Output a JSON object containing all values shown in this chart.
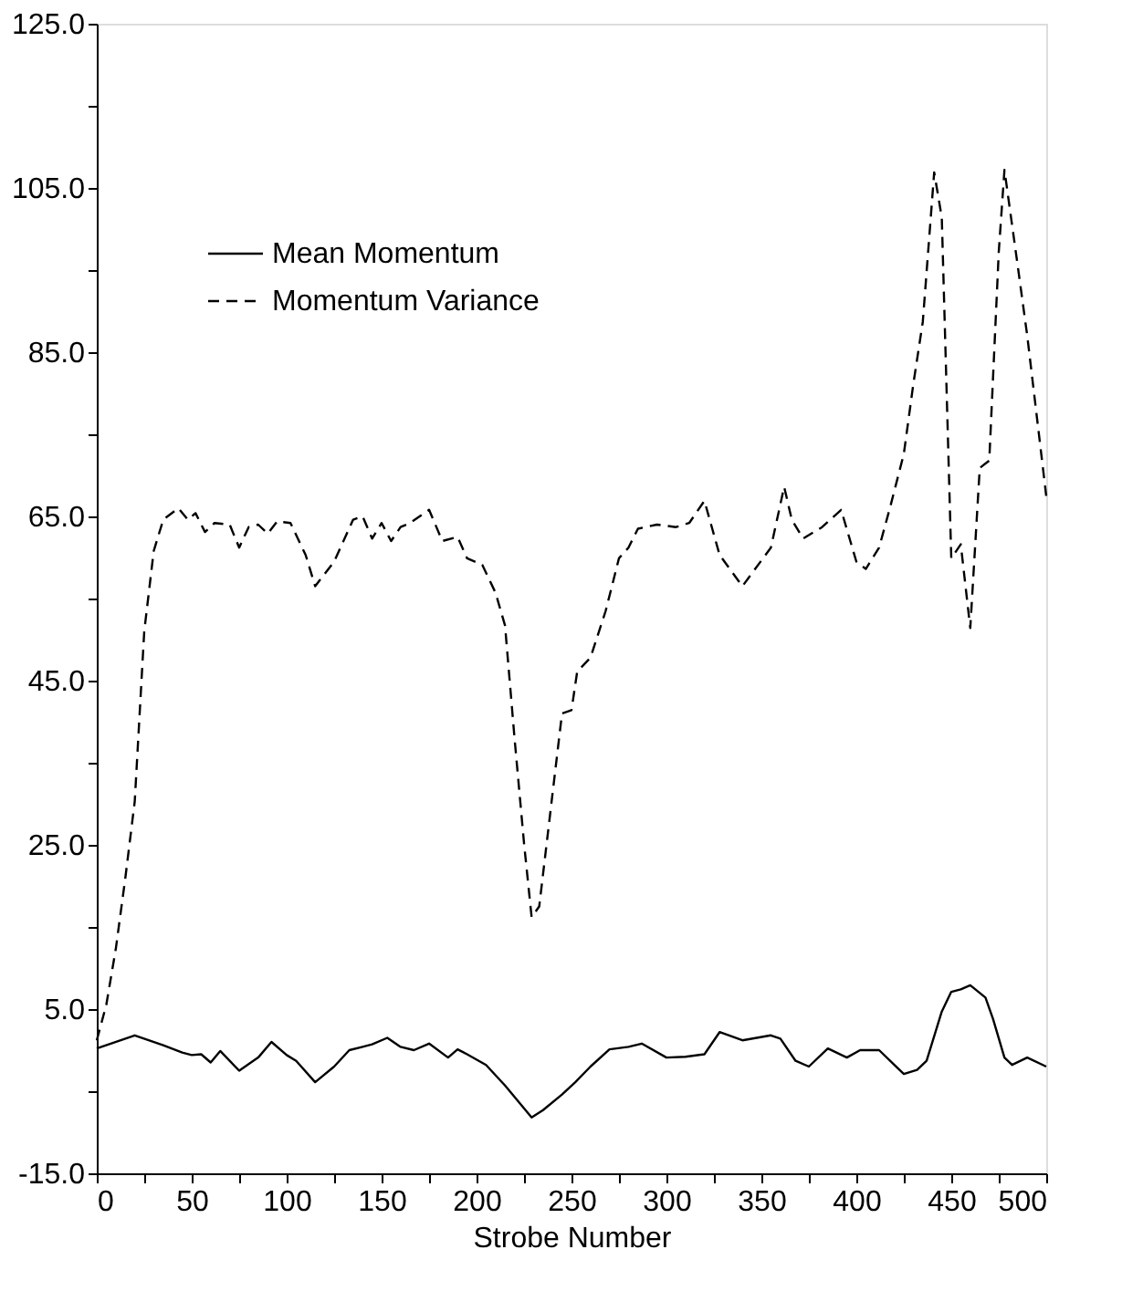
{
  "chart_data": {
    "type": "line",
    "xlabel": "Strobe Number",
    "xlim": [
      0,
      500
    ],
    "xticks": [
      0,
      {
        "value": 25,
        "label": null
      },
      50,
      {
        "value": 75,
        "label": null
      },
      100,
      {
        "value": 125,
        "label": null
      },
      150,
      {
        "value": 175,
        "label": null
      },
      200,
      {
        "value": 225,
        "label": null
      },
      250,
      {
        "value": 275,
        "label": null
      },
      300,
      {
        "value": 325,
        "label": null
      },
      350,
      {
        "value": 375,
        "label": null
      },
      400,
      {
        "value": 425,
        "label": null
      },
      450,
      {
        "value": 475,
        "label": null
      },
      500
    ],
    "ylim": [
      -15,
      125
    ],
    "yticks": [
      {
        "value": -15,
        "label": "-15.0"
      },
      {
        "value": -5,
        "label": null
      },
      {
        "value": 5,
        "label": "5.0"
      },
      {
        "value": 15,
        "label": null
      },
      {
        "value": 25,
        "label": "25.0"
      },
      {
        "value": 35,
        "label": null
      },
      {
        "value": 45,
        "label": "45.0"
      },
      {
        "value": 55,
        "label": null
      },
      {
        "value": 65,
        "label": "65.0"
      },
      {
        "value": 75,
        "label": null
      },
      {
        "value": 85,
        "label": "85.0"
      },
      {
        "value": 95,
        "label": null
      },
      {
        "value": 105,
        "label": "105.0"
      },
      {
        "value": 115,
        "label": null
      },
      {
        "value": 125,
        "label": "125.0"
      }
    ],
    "grid": false,
    "legend": "top left",
    "series": [
      {
        "name": "Mean Momentum",
        "color": "#000000",
        "line_style": "solid",
        "x": [
          0,
          20,
          35,
          45,
          50,
          55,
          60,
          65,
          75,
          85,
          92,
          100,
          105,
          115,
          125,
          133,
          140,
          145,
          153,
          160,
          167,
          175,
          185,
          190,
          195,
          205,
          215,
          229,
          235,
          245,
          252,
          260,
          270,
          280,
          287,
          300,
          310,
          320,
          328,
          340,
          355,
          360,
          368,
          375,
          385,
          395,
          402,
          412,
          420,
          425,
          432,
          437,
          445,
          450,
          455,
          460,
          468,
          472,
          478,
          482,
          490,
          500
        ],
        "values": [
          0.2,
          1.8,
          0.6,
          -0.3,
          -0.6,
          -0.5,
          -1.5,
          -0.1,
          -2.5,
          -0.9,
          1.0,
          -0.6,
          -1.3,
          -3.9,
          -2.0,
          0.0,
          0.4,
          0.7,
          1.5,
          0.4,
          0.0,
          0.8,
          -0.9,
          0.1,
          -0.5,
          -1.8,
          -4.3,
          -8.2,
          -7.3,
          -5.4,
          -3.9,
          -2.0,
          0.1,
          0.4,
          0.8,
          -0.9,
          -0.8,
          -0.5,
          2.2,
          1.2,
          1.8,
          1.4,
          -1.3,
          -2.0,
          0.2,
          -0.9,
          0.0,
          0.0,
          -1.8,
          -2.9,
          -2.4,
          -1.3,
          4.7,
          7.1,
          7.4,
          7.9,
          6.4,
          3.8,
          -0.9,
          -1.8,
          -0.9,
          -2.0
        ]
      },
      {
        "name": "Momentum Variance",
        "color": "#000000",
        "line_style": "dashed",
        "x": [
          0,
          5,
          10,
          15,
          20,
          25,
          30,
          35,
          43,
          48,
          52,
          57,
          62,
          70,
          75,
          80,
          85,
          90,
          95,
          102,
          110,
          115,
          125,
          135,
          140,
          145,
          150,
          155,
          160,
          165,
          175,
          182,
          190,
          195,
          203,
          210,
          215,
          220,
          225,
          229,
          233,
          240,
          245,
          250,
          253,
          260,
          268,
          275,
          280,
          285,
          295,
          305,
          312,
          320,
          328,
          340,
          355,
          362,
          366,
          372,
          382,
          392,
          400,
          405,
          412,
          418,
          425,
          430,
          435,
          441,
          445,
          450,
          455,
          460,
          465,
          470,
          475,
          478,
          485,
          490,
          500
        ],
        "values": [
          1.2,
          5.5,
          12.3,
          20.9,
          30.3,
          51,
          60.8,
          64.6,
          66.0,
          64.6,
          65.4,
          63.1,
          64.2,
          64.0,
          61.2,
          63.7,
          64.0,
          62.9,
          64.4,
          64.2,
          60.3,
          56.5,
          59.5,
          64.6,
          65.0,
          62.3,
          64.2,
          62.0,
          63.7,
          64.2,
          65.8,
          62.0,
          62.5,
          59.9,
          59.1,
          55.7,
          51.7,
          38.0,
          25.2,
          16.2,
          17.5,
          31.2,
          41.0,
          41.4,
          46.1,
          47.8,
          53.5,
          59.9,
          61.2,
          63.5,
          64.0,
          63.7,
          64.2,
          66.9,
          60.3,
          56.5,
          61.2,
          68.6,
          64.6,
          62.3,
          63.7,
          65.8,
          59.5,
          58.6,
          61.2,
          66.3,
          72.6,
          81.1,
          88.7,
          106.9,
          101.4,
          59.9,
          61.6,
          51.4,
          70.9,
          71.8,
          97.2,
          107.2,
          95.5,
          87.0,
          67.5
        ]
      }
    ]
  }
}
